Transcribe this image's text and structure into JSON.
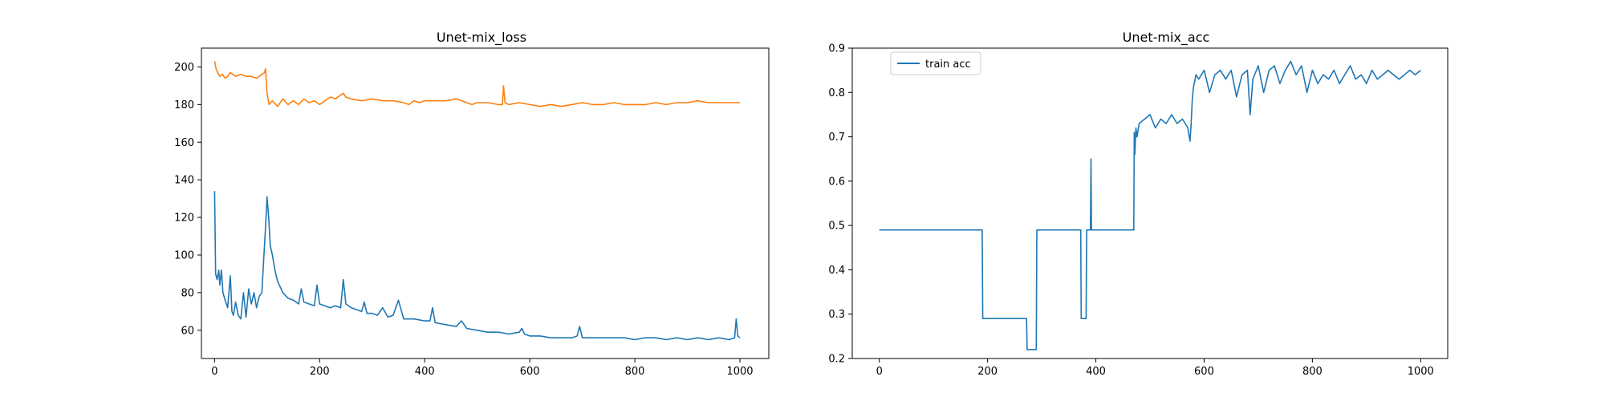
{
  "colors": {
    "blue": "#1f77b4",
    "orange": "#ff7f0e",
    "axes": "#000000",
    "legend_border": "#cccccc"
  },
  "chart_data": [
    {
      "type": "line",
      "title": "Unet-mix_loss",
      "xlabel": "",
      "ylabel": "",
      "xlim": [
        -25,
        1055
      ],
      "ylim": [
        45,
        210
      ],
      "xticks": [
        0,
        200,
        400,
        600,
        800,
        1000
      ],
      "yticks": [
        60,
        80,
        100,
        120,
        140,
        160,
        180,
        200
      ],
      "grid": false,
      "legend": null,
      "series": [
        {
          "color": "#ff7f0e",
          "x": [
            0,
            3,
            6,
            10,
            15,
            20,
            25,
            30,
            40,
            50,
            60,
            70,
            80,
            90,
            95,
            97,
            100,
            104,
            110,
            120,
            130,
            140,
            150,
            160,
            170,
            180,
            190,
            200,
            210,
            220,
            230,
            240,
            245,
            250,
            260,
            280,
            300,
            320,
            340,
            360,
            370,
            380,
            390,
            400,
            420,
            440,
            460,
            480,
            490,
            500,
            520,
            540,
            548,
            550,
            553,
            560,
            580,
            600,
            620,
            640,
            660,
            680,
            700,
            720,
            740,
            760,
            780,
            800,
            820,
            840,
            860,
            880,
            900,
            920,
            940,
            960,
            980,
            1000
          ],
          "y": [
            203,
            199,
            197,
            195,
            196,
            194,
            195,
            197,
            195,
            196,
            195,
            195,
            194,
            196,
            197,
            199,
            186,
            180,
            182,
            179,
            183,
            180,
            182,
            180,
            183,
            181,
            182,
            180,
            182,
            184,
            183,
            185,
            186,
            184,
            183,
            182,
            183,
            182,
            182,
            181,
            180,
            182,
            181,
            182,
            182,
            182,
            183,
            181,
            180,
            181,
            181,
            180,
            180,
            190,
            181,
            180,
            181,
            180,
            179,
            180,
            179,
            180,
            181,
            180,
            180,
            181,
            180,
            180,
            180,
            181,
            180,
            181,
            181,
            182,
            181,
            181,
            181,
            181
          ]
        },
        {
          "color": "#1f77b4",
          "x": [
            0,
            2,
            5,
            8,
            10,
            13,
            16,
            20,
            25,
            30,
            33,
            36,
            40,
            45,
            50,
            55,
            60,
            65,
            70,
            75,
            80,
            85,
            90,
            94,
            97,
            100,
            103,
            106,
            110,
            115,
            120,
            130,
            140,
            150,
            160,
            165,
            170,
            180,
            190,
            195,
            200,
            210,
            220,
            230,
            240,
            245,
            250,
            260,
            270,
            280,
            285,
            290,
            300,
            310,
            320,
            330,
            340,
            350,
            360,
            380,
            400,
            410,
            415,
            420,
            440,
            460,
            470,
            480,
            500,
            520,
            540,
            560,
            580,
            585,
            590,
            600,
            620,
            640,
            660,
            680,
            690,
            695,
            700,
            720,
            740,
            760,
            780,
            800,
            820,
            840,
            860,
            880,
            900,
            920,
            940,
            960,
            980,
            990,
            993,
            996,
            1000
          ],
          "y": [
            134,
            90,
            87,
            92,
            84,
            92,
            80,
            76,
            72,
            89,
            70,
            68,
            75,
            68,
            66,
            80,
            67,
            82,
            74,
            80,
            72,
            78,
            80,
            100,
            115,
            131,
            120,
            105,
            100,
            92,
            86,
            80,
            77,
            76,
            74,
            82,
            75,
            74,
            73,
            84,
            74,
            73,
            72,
            73,
            72,
            87,
            74,
            72,
            71,
            70,
            75,
            69,
            69,
            68,
            72,
            67,
            68,
            76,
            66,
            66,
            65,
            65,
            72,
            64,
            63,
            62,
            65,
            61,
            60,
            59,
            59,
            58,
            59,
            61,
            58,
            57,
            57,
            56,
            56,
            56,
            57,
            62,
            56,
            56,
            56,
            56,
            56,
            55,
            56,
            56,
            55,
            56,
            55,
            56,
            55,
            56,
            55,
            56,
            66,
            57,
            56
          ]
        }
      ]
    },
    {
      "type": "line",
      "title": "Unet-mix_acc",
      "xlabel": "",
      "ylabel": "",
      "xlim": [
        -50,
        1050
      ],
      "ylim": [
        0.2,
        0.9
      ],
      "xticks": [
        0,
        200,
        400,
        600,
        800,
        1000
      ],
      "yticks": [
        0.2,
        0.3,
        0.4,
        0.5,
        0.6,
        0.7,
        0.8,
        0.9
      ],
      "grid": false,
      "legend": "upper left",
      "series": [
        {
          "name": "train acc",
          "color": "#1f77b4",
          "x": [
            0,
            190,
            191,
            272,
            273,
            290,
            291,
            372,
            373,
            382,
            383,
            390,
            391,
            392,
            393,
            470,
            471,
            472,
            474,
            476,
            480,
            490,
            500,
            510,
            520,
            530,
            540,
            550,
            560,
            570,
            574,
            576,
            578,
            580,
            585,
            590,
            600,
            610,
            620,
            630,
            640,
            650,
            660,
            670,
            680,
            685,
            690,
            700,
            710,
            720,
            730,
            740,
            750,
            760,
            770,
            780,
            790,
            800,
            810,
            820,
            830,
            840,
            850,
            860,
            870,
            880,
            890,
            900,
            910,
            920,
            930,
            940,
            950,
            960,
            970,
            980,
            990,
            1000
          ],
          "y": [
            0.49,
            0.49,
            0.29,
            0.29,
            0.22,
            0.22,
            0.49,
            0.49,
            0.29,
            0.29,
            0.49,
            0.49,
            0.65,
            0.49,
            0.49,
            0.49,
            0.71,
            0.66,
            0.72,
            0.7,
            0.73,
            0.74,
            0.75,
            0.72,
            0.74,
            0.73,
            0.75,
            0.73,
            0.74,
            0.72,
            0.69,
            0.73,
            0.78,
            0.81,
            0.84,
            0.83,
            0.85,
            0.8,
            0.84,
            0.85,
            0.83,
            0.85,
            0.79,
            0.84,
            0.85,
            0.75,
            0.83,
            0.86,
            0.8,
            0.85,
            0.86,
            0.82,
            0.85,
            0.87,
            0.84,
            0.86,
            0.8,
            0.85,
            0.82,
            0.84,
            0.83,
            0.85,
            0.82,
            0.84,
            0.86,
            0.83,
            0.84,
            0.82,
            0.85,
            0.83,
            0.84,
            0.85,
            0.84,
            0.83,
            0.84,
            0.85,
            0.84,
            0.85
          ]
        }
      ]
    }
  ]
}
